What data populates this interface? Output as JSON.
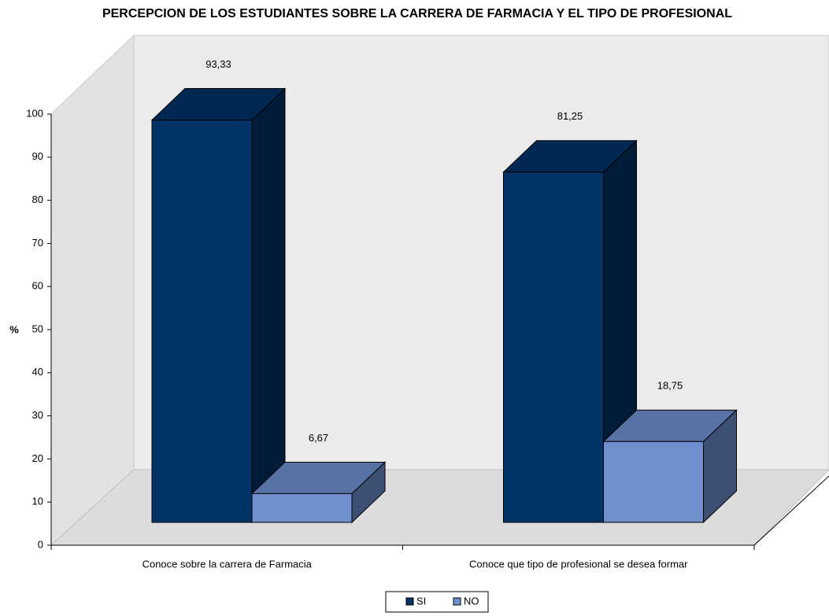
{
  "chart_data": {
    "type": "bar3d",
    "title": "PERCEPCION DE LOS ESTUDIANTES SOBRE LA CARRERA DE FARMACIA Y EL TIPO DE PROFESIONAL",
    "y_label": "%",
    "categories": [
      "Conoce sobre la carrera de Farmacia",
      "Conoce que tipo de profesional se desea formar"
    ],
    "series": [
      {
        "name": "SI",
        "color": "#003366",
        "values": [
          93.33,
          81.25
        ],
        "value_labels": [
          "93,33",
          "81,25"
        ]
      },
      {
        "name": "NO",
        "color": "#6f8fcf",
        "values": [
          6.67,
          18.75
        ],
        "value_labels": [
          "6,67",
          "18,75"
        ]
      }
    ],
    "ylim": [
      0,
      100
    ],
    "yticks": [
      0,
      10,
      20,
      30,
      40,
      50,
      60,
      70,
      80,
      90,
      100
    ],
    "legend": "bottom"
  }
}
